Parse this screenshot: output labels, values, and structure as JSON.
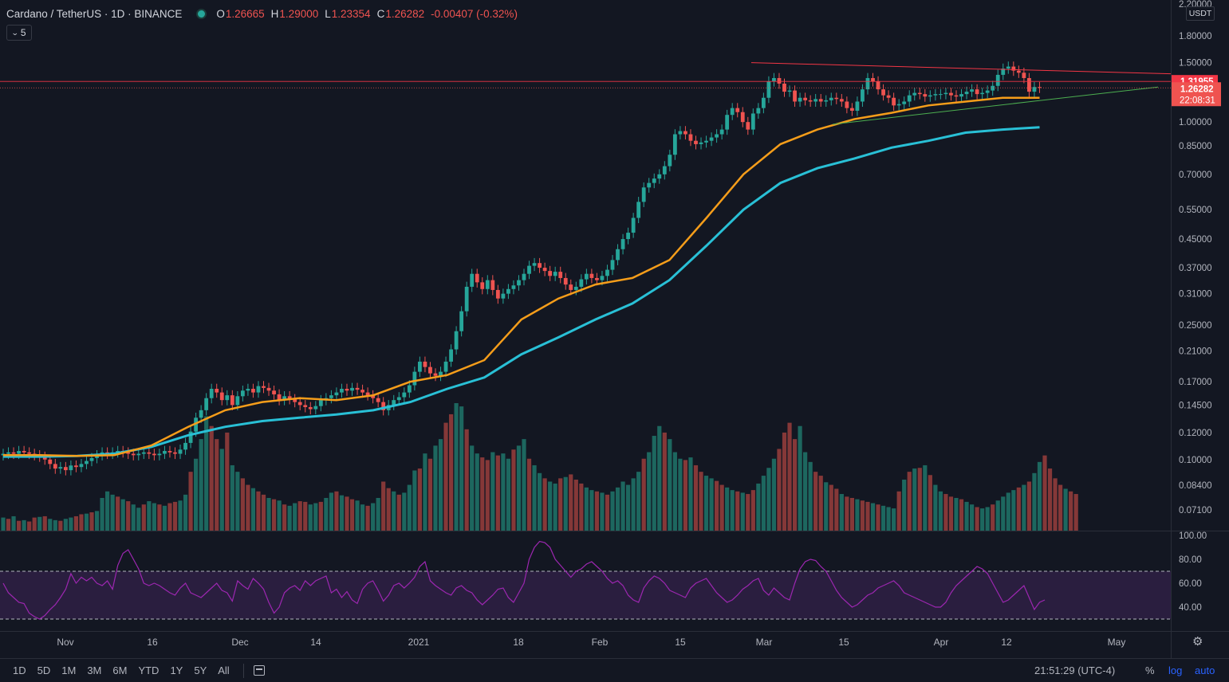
{
  "legend": {
    "symbol": "Cardano / TetherUS · 1D · BINANCE",
    "open_label": "O",
    "open": "1.26665",
    "high_label": "H",
    "high": "1.29000",
    "low_label": "L",
    "low": "1.23354",
    "close_label": "C",
    "close": "1.26282",
    "change": "-0.00407 (-0.32%)"
  },
  "indicators_collapse": {
    "count": "5"
  },
  "currency": "USDT",
  "price_axis": {
    "ticks": [
      "2.20000",
      "1.80000",
      "1.50000",
      "1.00000",
      "0.85000",
      "0.70000",
      "0.55000",
      "0.45000",
      "0.37000",
      "0.31000",
      "0.25000",
      "0.21000",
      "0.17000",
      "0.14500",
      "0.12000",
      "0.10000",
      "0.08400",
      "0.07100"
    ],
    "tag_line": "1.31955",
    "tag_price": "1.26282",
    "tag_countdown": "22:08:31"
  },
  "rsi_axis": {
    "ticks": [
      "100.00",
      "80.00",
      "60.00",
      "40.00"
    ]
  },
  "time_axis": {
    "labels": [
      "Nov",
      "16",
      "Dec",
      "14",
      "2021",
      "18",
      "Feb",
      "15",
      "Mar",
      "15",
      "Apr",
      "12",
      "May"
    ]
  },
  "bottom_bar": {
    "ranges": [
      "1D",
      "5D",
      "1M",
      "3M",
      "6M",
      "YTD",
      "1Y",
      "5Y",
      "All"
    ],
    "time": "21:51:29 (UTC-4)",
    "percent": "%",
    "log": "log",
    "auto": "auto"
  },
  "colors": {
    "up": "#26a69a",
    "down": "#ef5350",
    "ma_fast": "#f59d1a",
    "ma_slow": "#29c0d6",
    "rsi": "#9c27b0",
    "resistance": "#f23645",
    "support": "#4caf50"
  },
  "chart_data": {
    "type": "candlestick",
    "scale": "log",
    "ylim": [
      0.065,
      2.25
    ],
    "x_labels": [
      "Nov",
      "16",
      "Dec",
      "14",
      "2021",
      "18",
      "Feb",
      "15",
      "Mar",
      "15",
      "Apr",
      "12",
      "May"
    ],
    "close_series": [
      0.104,
      0.105,
      0.104,
      0.106,
      0.105,
      0.104,
      0.103,
      0.102,
      0.1,
      0.097,
      0.094,
      0.095,
      0.093,
      0.096,
      0.095,
      0.097,
      0.099,
      0.101,
      0.103,
      0.105,
      0.104,
      0.105,
      0.106,
      0.105,
      0.104,
      0.103,
      0.104,
      0.105,
      0.104,
      0.103,
      0.104,
      0.106,
      0.105,
      0.104,
      0.107,
      0.112,
      0.121,
      0.133,
      0.14,
      0.152,
      0.162,
      0.158,
      0.15,
      0.155,
      0.145,
      0.154,
      0.16,
      0.162,
      0.158,
      0.165,
      0.163,
      0.16,
      0.156,
      0.15,
      0.154,
      0.151,
      0.148,
      0.145,
      0.143,
      0.141,
      0.144,
      0.15,
      0.152,
      0.155,
      0.158,
      0.162,
      0.16,
      0.163,
      0.161,
      0.158,
      0.155,
      0.152,
      0.148,
      0.14,
      0.145,
      0.15,
      0.153,
      0.158,
      0.166,
      0.182,
      0.195,
      0.188,
      0.18,
      0.177,
      0.182,
      0.195,
      0.212,
      0.24,
      0.275,
      0.325,
      0.355,
      0.335,
      0.32,
      0.34,
      0.318,
      0.3,
      0.31,
      0.32,
      0.328,
      0.34,
      0.355,
      0.375,
      0.382,
      0.37,
      0.362,
      0.35,
      0.36,
      0.345,
      0.33,
      0.318,
      0.325,
      0.342,
      0.355,
      0.345,
      0.34,
      0.35,
      0.365,
      0.39,
      0.42,
      0.45,
      0.47,
      0.52,
      0.58,
      0.64,
      0.66,
      0.68,
      0.7,
      0.74,
      0.8,
      0.92,
      0.94,
      0.92,
      0.88,
      0.86,
      0.87,
      0.88,
      0.9,
      0.92,
      0.95,
      1.05,
      1.1,
      1.07,
      1.0,
      0.95,
      1.06,
      1.1,
      1.18,
      1.32,
      1.35,
      1.3,
      1.23,
      1.24,
      1.15,
      1.18,
      1.16,
      1.15,
      1.17,
      1.15,
      1.16,
      1.18,
      1.17,
      1.15,
      1.1,
      1.08,
      1.15,
      1.25,
      1.35,
      1.32,
      1.25,
      1.2,
      1.18,
      1.12,
      1.13,
      1.15,
      1.2,
      1.22,
      1.21,
      1.19,
      1.2,
      1.21,
      1.21,
      1.22,
      1.2,
      1.19,
      1.21,
      1.23,
      1.25,
      1.21,
      1.22,
      1.24,
      1.28,
      1.38,
      1.44,
      1.46,
      1.42,
      1.4,
      1.35,
      1.23,
      1.27,
      1.263
    ],
    "ma_fast_series": [
      0.103,
      0.103,
      0.1025,
      0.103,
      0.11,
      0.125,
      0.14,
      0.148,
      0.152,
      0.15,
      0.155,
      0.17,
      0.178,
      0.197,
      0.26,
      0.3,
      0.33,
      0.345,
      0.39,
      0.52,
      0.7,
      0.86,
      0.95,
      1.02,
      1.065,
      1.12,
      1.15,
      1.18,
      1.18
    ],
    "ma_slow_series": [
      0.102,
      0.102,
      0.1025,
      0.104,
      0.109,
      0.118,
      0.125,
      0.13,
      0.133,
      0.136,
      0.14,
      0.148,
      0.162,
      0.175,
      0.205,
      0.23,
      0.26,
      0.29,
      0.34,
      0.43,
      0.55,
      0.66,
      0.73,
      0.78,
      0.84,
      0.88,
      0.93,
      0.95,
      0.965
    ],
    "rsi_series": [
      60,
      52,
      48,
      44,
      43,
      35,
      32,
      30,
      33,
      38,
      42,
      48,
      55,
      68,
      60,
      65,
      62,
      65,
      60,
      58,
      62,
      55,
      75,
      85,
      88,
      80,
      72,
      60,
      58,
      60,
      58,
      55,
      52,
      50,
      56,
      60,
      52,
      50,
      48,
      52,
      56,
      60,
      54,
      52,
      45,
      62,
      58,
      55,
      64,
      60,
      55,
      44,
      35,
      40,
      52,
      56,
      58,
      54,
      62,
      58,
      62,
      64,
      66,
      52,
      55,
      48,
      53,
      46,
      43,
      55,
      60,
      62,
      54,
      45,
      50,
      58,
      60,
      56,
      60,
      65,
      74,
      78,
      62,
      58,
      55,
      52,
      50,
      56,
      58,
      54,
      52,
      46,
      42,
      46,
      50,
      55,
      56,
      48,
      44,
      52,
      60,
      80,
      90,
      95,
      94,
      90,
      80,
      75,
      70,
      65,
      70,
      72,
      76,
      78,
      74,
      70,
      64,
      60,
      62,
      58,
      50,
      46,
      44,
      56,
      62,
      66,
      64,
      60,
      54,
      52,
      50,
      48,
      56,
      60,
      62,
      64,
      58,
      52,
      48,
      44,
      46,
      50,
      55,
      58,
      62,
      64,
      54,
      50,
      56,
      52,
      48,
      46,
      60,
      72,
      78,
      80,
      79,
      74,
      70,
      62,
      54,
      48,
      44,
      40,
      42,
      46,
      50,
      52,
      56,
      58,
      60,
      62,
      58,
      52,
      50,
      48,
      46,
      44,
      42,
      40,
      40,
      44,
      52,
      58,
      62,
      66,
      70,
      74,
      72,
      68,
      60,
      52,
      44,
      46,
      50,
      54,
      58,
      48,
      38,
      44,
      46
    ],
    "volume_series": [
      20,
      18,
      22,
      15,
      16,
      14,
      20,
      21,
      22,
      18,
      16,
      15,
      18,
      20,
      22,
      25,
      26,
      28,
      30,
      50,
      60,
      55,
      52,
      48,
      45,
      40,
      35,
      40,
      45,
      42,
      40,
      38,
      42,
      44,
      46,
      55,
      90,
      110,
      140,
      175,
      160,
      140,
      125,
      150,
      100,
      90,
      80,
      70,
      65,
      60,
      55,
      50,
      48,
      46,
      40,
      38,
      42,
      45,
      44,
      40,
      42,
      44,
      50,
      58,
      60,
      54,
      52,
      48,
      46,
      40,
      38,
      42,
      50,
      75,
      65,
      60,
      55,
      58,
      70,
      92,
      95,
      118,
      110,
      130,
      140,
      165,
      178,
      195,
      190,
      155,
      130,
      118,
      112,
      108,
      120,
      115,
      118,
      110,
      124,
      130,
      140,
      110,
      100,
      88,
      80,
      75,
      72,
      80,
      82,
      86,
      78,
      72,
      66,
      62,
      60,
      58,
      55,
      60,
      66,
      75,
      70,
      80,
      90,
      110,
      120,
      145,
      160,
      150,
      140,
      120,
      110,
      108,
      112,
      100,
      90,
      84,
      80,
      76,
      70,
      66,
      62,
      60,
      58,
      56,
      62,
      72,
      84,
      96,
      110,
      125,
      150,
      165,
      140,
      160,
      120,
      105,
      90,
      84,
      74,
      70,
      64,
      56,
      52,
      50,
      48,
      46,
      44,
      42,
      40,
      38,
      36,
      34,
      60,
      78,
      90,
      95,
      96,
      100,
      85,
      70,
      60,
      56,
      52,
      50,
      48,
      44,
      40,
      36,
      34,
      36,
      40,
      46,
      52,
      58,
      62,
      66,
      70,
      75,
      88,
      105,
      115,
      95,
      80,
      70,
      64,
      60,
      56
    ],
    "volume_up_pattern": [
      1,
      0,
      1,
      0,
      1,
      0,
      0,
      1,
      0,
      1,
      1,
      0,
      1,
      1,
      0,
      0,
      1,
      0,
      1,
      1,
      1,
      1,
      0,
      1,
      0,
      1,
      1,
      0,
      1,
      1,
      0,
      1,
      0,
      0,
      1,
      1,
      0,
      1,
      1,
      1,
      0,
      0,
      1,
      0,
      1,
      1,
      0,
      0,
      1,
      0,
      0,
      1,
      0,
      1,
      0,
      1,
      1,
      0,
      0,
      1,
      1,
      0,
      1,
      1,
      0,
      1,
      0,
      0,
      1,
      1,
      0,
      1,
      1,
      0,
      0,
      1,
      0,
      1,
      1,
      1,
      0,
      1,
      0,
      1,
      1,
      0,
      0,
      1,
      1,
      0,
      1,
      1,
      0,
      0,
      1,
      0,
      1,
      1,
      0,
      1,
      1,
      0,
      1,
      1,
      0,
      1,
      1,
      0,
      1,
      0,
      0,
      0,
      1,
      1,
      0,
      1,
      0,
      1,
      1,
      1,
      1,
      1,
      1,
      0,
      1,
      1,
      1,
      0,
      1,
      1,
      1,
      0,
      1,
      0,
      0,
      1,
      1,
      0,
      0,
      1,
      1,
      0,
      1,
      0,
      0,
      1,
      1,
      1,
      1,
      0,
      0,
      0,
      0,
      1,
      1,
      1,
      0,
      0,
      1,
      0,
      0,
      1,
      0,
      0,
      1,
      0,
      0,
      1,
      0,
      1,
      1,
      1,
      0,
      1,
      0,
      1,
      0,
      1,
      0,
      1,
      1,
      0,
      0,
      1,
      0,
      1,
      1,
      0,
      1,
      1,
      0,
      1,
      1,
      1,
      1,
      0,
      1,
      0,
      1,
      1,
      0,
      0,
      0,
      0,
      1,
      0
    ]
  }
}
